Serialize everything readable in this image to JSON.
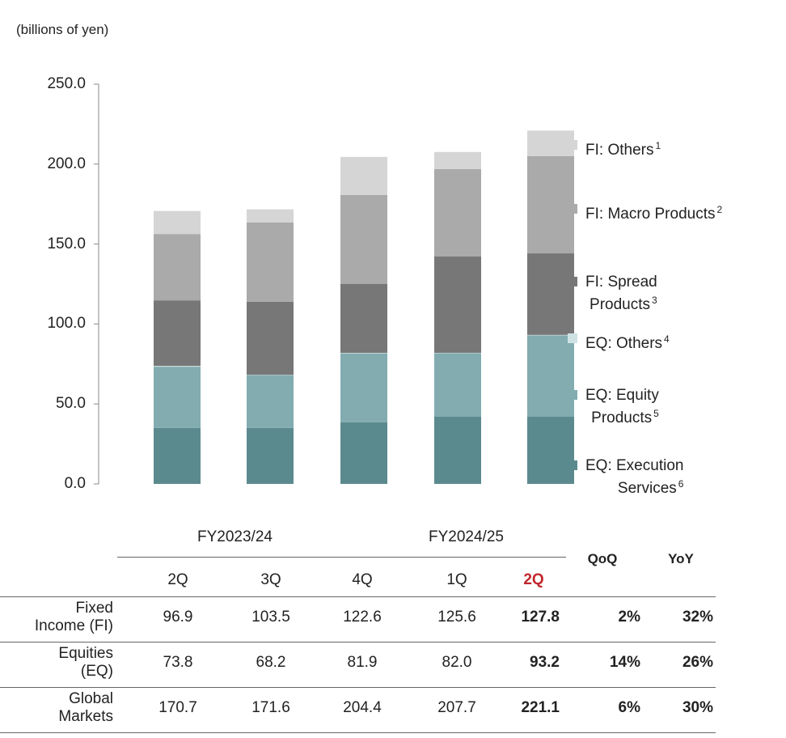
{
  "chart_data": {
    "type": "stacked_bar",
    "y_axis_unit": "(billions of yen)",
    "categories": [
      "2Q",
      "3Q",
      "4Q",
      "1Q",
      "2Q"
    ],
    "ylim": [
      0,
      250
    ],
    "yticks": [
      {
        "value": 0,
        "label": "0.0"
      },
      {
        "value": 50,
        "label": "50.0"
      },
      {
        "value": 100,
        "label": "100.0"
      },
      {
        "value": 150,
        "label": "150.0"
      },
      {
        "value": 200,
        "label": "200.0"
      },
      {
        "value": 250,
        "label": "250.0"
      }
    ],
    "series": [
      {
        "name": "EQ: Execution\nServices",
        "note": "6",
        "color": "#5b8a8e",
        "values": [
          35,
          35,
          38.5,
          42,
          42
        ]
      },
      {
        "name": "EQ: Equity\nProducts",
        "note": "5",
        "color": "#82acb0",
        "values": [
          38.3,
          33,
          43,
          39.8,
          50.9
        ]
      },
      {
        "name": "EQ: Others",
        "note": "4",
        "color": "#cfe2e3",
        "values": [
          0.5,
          0.2,
          0.4,
          0.2,
          0.3
        ]
      },
      {
        "name": "FI: Spread\nProducts",
        "note": "3",
        "color": "#777777",
        "values": [
          41,
          45.7,
          43.1,
          60.2,
          51
        ]
      },
      {
        "name": "FI: Macro Products",
        "note": "2",
        "color": "#aaaaaa",
        "values": [
          41.5,
          49.6,
          55.7,
          54.7,
          60.8
        ]
      },
      {
        "name": "FI: Others",
        "note": "1",
        "color": "#d5d5d5",
        "values": [
          14.4,
          8.2,
          23.8,
          10.7,
          16
        ]
      }
    ]
  },
  "table": {
    "column_groups": [
      "FY2023/24",
      "FY2024/25"
    ],
    "extra_columns": [
      "QoQ",
      "YoY"
    ],
    "rows": [
      {
        "label": "Fixed\nIncome (FI)",
        "cells": [
          "96.9",
          "103.5",
          "122.6",
          "125.6",
          "127.8",
          "2%",
          "32%"
        ]
      },
      {
        "label": "Equities\n(EQ)",
        "cells": [
          "73.8",
          "68.2",
          "81.9",
          "82.0",
          "93.2",
          "14%",
          "26%"
        ]
      },
      {
        "label": "Global\nMarkets",
        "cells": [
          "170.7",
          "171.6",
          "204.4",
          "207.7",
          "221.1",
          "6%",
          "30%"
        ]
      }
    ]
  }
}
